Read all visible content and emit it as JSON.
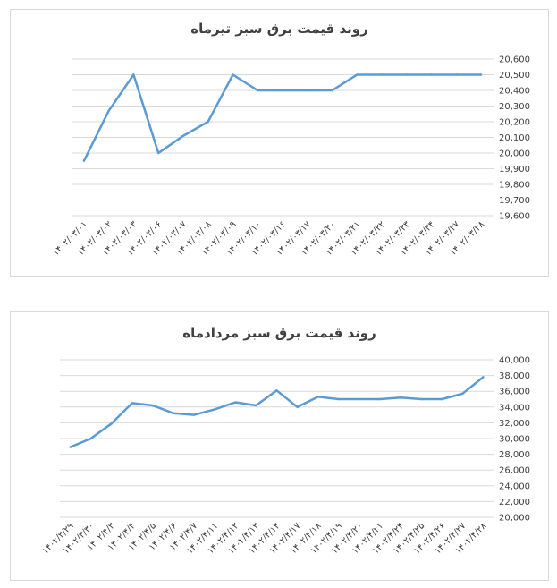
{
  "chart_data": [
    {
      "type": "line",
      "title": "روند قیمت برق سبز تیرماه",
      "categories": [
        "۱۴۰۲/۰۳/۰۱",
        "۱۴۰۲/۰۳/۰۲",
        "۱۴۰۲/۰۳/۰۳",
        "۱۴۰۲/۰۳/۰۶",
        "۱۴۰۲/۰۳/۰۷",
        "۱۴۰۲/۰۳/۰۸",
        "۱۴۰۲/۰۳/۰۹",
        "۱۴۰۲/۰۳/۱۰",
        "۱۴۰۲/۰۳/۱۶",
        "۱۴۰۲/۰۳/۱۷",
        "۱۴۰۲/۰۳/۲۰",
        "۱۴۰۲/۰۳/۲۱",
        "۱۴۰۲/۰۳/۲۲",
        "۱۴۰۲/۰۳/۲۳",
        "۱۴۰۲/۰۳/۲۴",
        "۱۴۰۲/۰۳/۲۷",
        "۱۴۰۲/۰۳/۲۸"
      ],
      "values": [
        19950,
        20270,
        20500,
        20000,
        20110,
        20200,
        20500,
        20400,
        20400,
        20400,
        20400,
        20500,
        20500,
        20500,
        20500,
        20500,
        20500
      ],
      "ylim": [
        19600,
        20600
      ],
      "yticks": [
        19600,
        19700,
        19800,
        19900,
        20000,
        20100,
        20200,
        20300,
        20400,
        20500,
        20600
      ],
      "ytick_labels": [
        "19,600",
        "19,700",
        "19,800",
        "19,900",
        "20,000",
        "20,100",
        "20,200",
        "20,300",
        "20,400",
        "20,500",
        "20,600"
      ],
      "xlabel": "",
      "ylabel": "",
      "grid": true,
      "legend": "none",
      "color": "#5b9bd5"
    },
    {
      "type": "line",
      "title": "روند قیمت برق سبز مردادماه",
      "categories": [
        "۱۴۰۲/۳/۲۹",
        "۱۴۰۲/۳/۳۰",
        "۱۴۰۲/۴/۳",
        "۱۴۰۲/۴/۴",
        "۱۴۰۲/۴/۵",
        "۱۴۰۲/۴/۶",
        "۱۴۰۲/۴/۷",
        "۱۴۰۲/۴/۱۱",
        "۱۴۰۲/۴/۱۲",
        "۱۴۰۲/۴/۱۳",
        "۱۴۰۲/۴/۱۴",
        "۱۴۰۲/۴/۱۷",
        "۱۴۰۲/۴/۱۸",
        "۱۴۰۲/۴/۱۹",
        "۱۴۰۲/۴/۲۰",
        "۱۴۰۲/۴/۲۱",
        "۱۴۰۲/۴/۲۴",
        "۱۴۰۲/۴/۲۵",
        "۱۴۰۲/۴/۲۶",
        "۱۴۰۲/۴/۲۷",
        "۱۴۰۲/۴/۲۸"
      ],
      "values": [
        28900,
        30000,
        31900,
        34500,
        34200,
        33200,
        33000,
        33700,
        34600,
        34200,
        36100,
        34000,
        35300,
        35000,
        35000,
        35000,
        35200,
        35000,
        35000,
        35700,
        37800
      ],
      "ylim": [
        20000,
        40000
      ],
      "yticks": [
        20000,
        22000,
        24000,
        26000,
        28000,
        30000,
        32000,
        34000,
        36000,
        38000,
        40000
      ],
      "ytick_labels": [
        "20,000",
        "22,000",
        "24,000",
        "26,000",
        "28,000",
        "30,000",
        "32,000",
        "34,000",
        "36,000",
        "38,000",
        "40,000"
      ],
      "xlabel": "",
      "ylabel": "",
      "grid": true,
      "legend": "none",
      "color": "#5b9bd5"
    }
  ]
}
